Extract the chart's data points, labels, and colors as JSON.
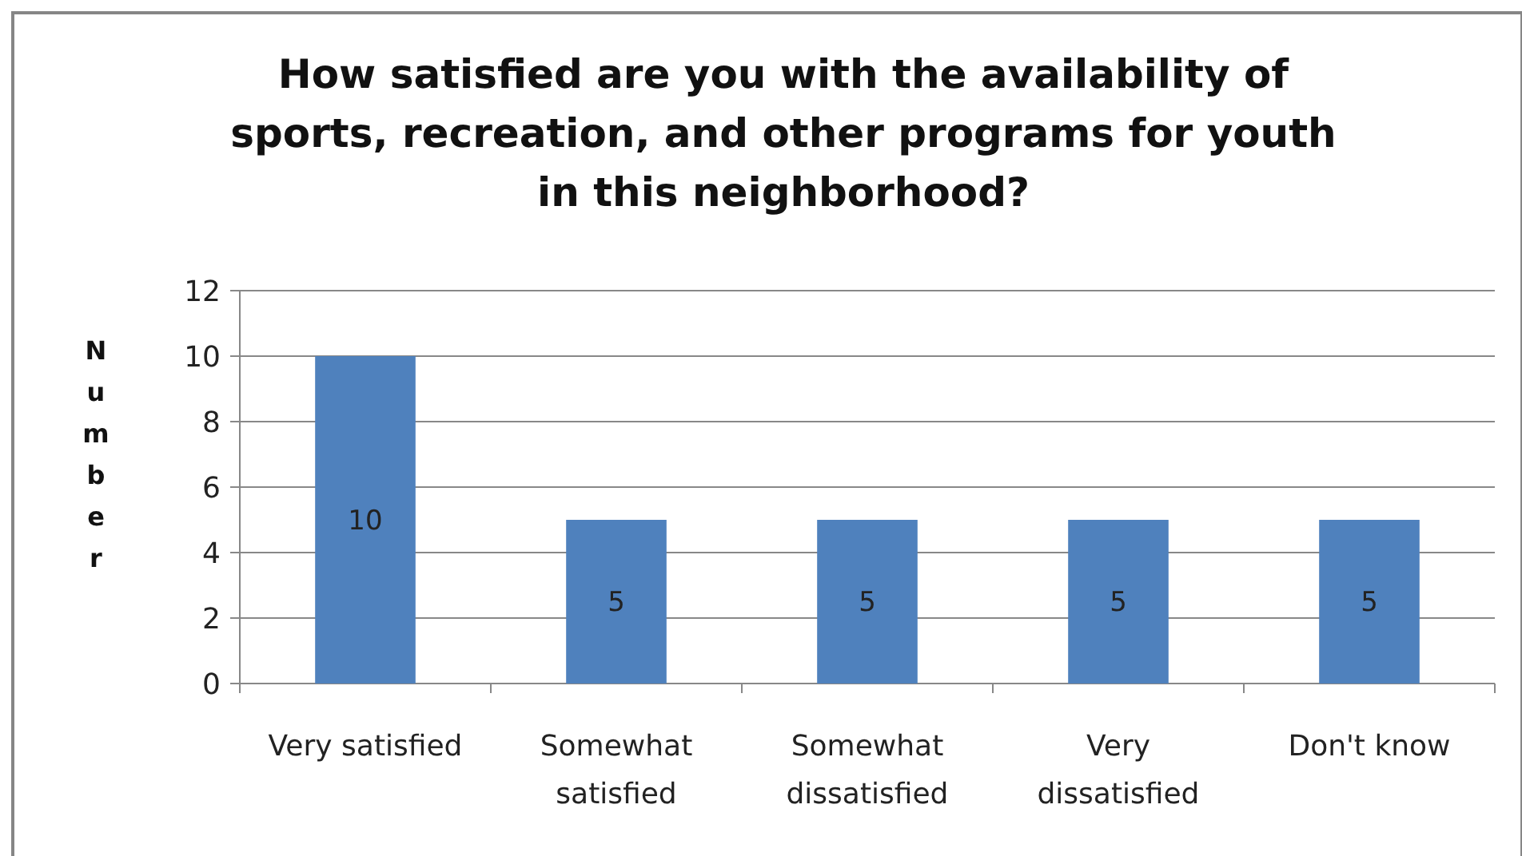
{
  "chart_data": {
    "type": "bar",
    "title": "How satisfied are you with the availability of sports, recreation, and other programs for youth in this neighborhood?",
    "ylabel": "Number",
    "categories": [
      "Very satisfied",
      "Somewhat satisfied",
      "Somewhat dissatisfied",
      "Very dissatisfied",
      "Don't know"
    ],
    "values": [
      10,
      5,
      5,
      5,
      5
    ],
    "color": "#4f81bd",
    "ylim": [
      0,
      12
    ],
    "yticks": [
      0,
      2,
      4,
      6,
      8,
      10,
      12
    ],
    "grid": "y",
    "data_labels": true
  }
}
